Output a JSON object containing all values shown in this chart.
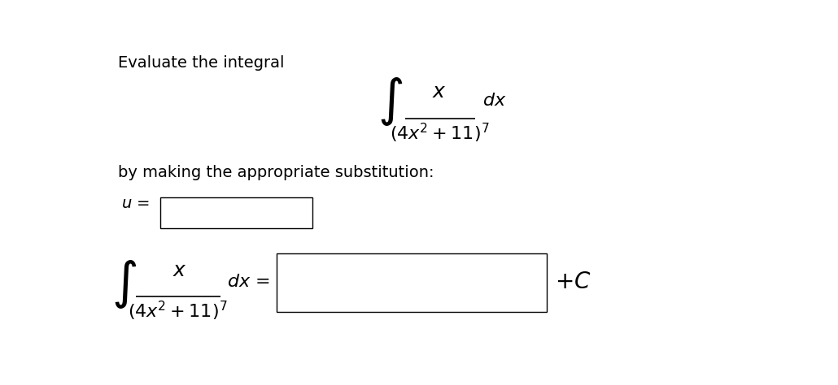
{
  "background_color": "#ffffff",
  "title_text": "Evaluate the integral",
  "subtitle_text": "by making the appropriate substitution:",
  "u_label": "u =",
  "plus_c": "$+C$",
  "fig_width": 10.3,
  "fig_height": 4.74,
  "dpi": 100,
  "fs_text": 14,
  "fs_math": 16,
  "fs_integral": 32
}
